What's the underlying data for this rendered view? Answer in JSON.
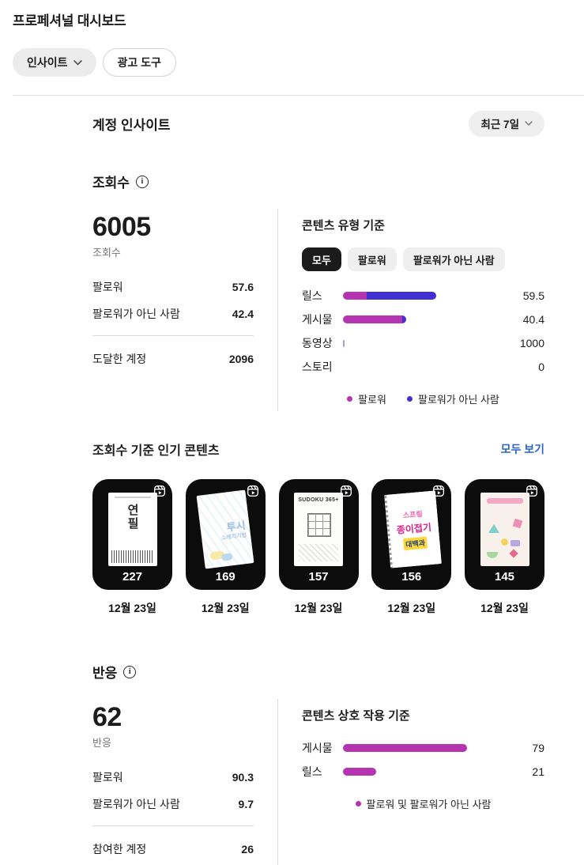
{
  "header": {
    "title": "프로페셔널 대시보드",
    "insights_tab": "인사이트",
    "ad_tools_tab": "광고 도구"
  },
  "account_insights": {
    "section_title": "계정 인사이트",
    "date_filter": "최근 7일",
    "views": {
      "heading": "조회수",
      "total": "6005",
      "total_label": "조회수",
      "follower_label": "팔로워",
      "follower_value": "57.6",
      "non_follower_label": "팔로워가 아닌 사람",
      "non_follower_value": "42.4",
      "reached_label": "도달한 계정",
      "reached_value": "2096"
    },
    "content_type": {
      "heading": "콘텐츠 유형 기준",
      "filters": [
        "모두",
        "팔로워",
        "팔로워가 아닌 사람"
      ],
      "active_filter": "모두",
      "rows": [
        {
          "label": "릴스",
          "value": "59.5",
          "segments": [
            {
              "color_key": "follower",
              "pct": 15.3
            },
            {
              "color_key": "non_follower",
              "pct": 44.2
            }
          ]
        },
        {
          "label": "게시물",
          "value": "40.4",
          "segments": [
            {
              "color_key": "follower",
              "pct": 37.6
            },
            {
              "color_key": "non_follower",
              "pct": 2.8
            }
          ]
        },
        {
          "label": "동영상",
          "value": "1000",
          "segments": [
            {
              "color_key": "tick",
              "pct": 1
            }
          ]
        },
        {
          "label": "스토리",
          "value": "0",
          "segments": []
        }
      ],
      "legend": [
        {
          "label": "팔로워",
          "color_key": "follower"
        },
        {
          "label": "팔로워가 아닌 사람",
          "color_key": "non_follower"
        }
      ]
    }
  },
  "top_content": {
    "heading": "조회수 기준 인기 콘텐츠",
    "see_all": "모두 보기",
    "items": [
      {
        "views": "227",
        "date": "12월 23일"
      },
      {
        "views": "169",
        "date": "12월 23일"
      },
      {
        "views": "157",
        "date": "12월 23일"
      },
      {
        "views": "156",
        "date": "12월 23일"
      },
      {
        "views": "145",
        "date": "12월 23일"
      }
    ],
    "cover_texts": {
      "c1": "연필",
      "c2a": "투시",
      "c2b": "스케치기법",
      "c3": "SUDOKU 365+",
      "c4a": "스프링",
      "c4b": "종이접기",
      "c4c": "대백과"
    }
  },
  "engagement": {
    "heading": "반응",
    "total": "62",
    "total_label": "반응",
    "follower_label": "팔로워",
    "follower_value": "90.3",
    "non_follower_label": "팔로워가 아닌 사람",
    "non_follower_value": "9.7",
    "engaged_label": "참여한 계정",
    "engaged_value": "26",
    "interaction": {
      "heading": "콘텐츠 상호 작용 기준",
      "rows": [
        {
          "label": "게시물",
          "value": "79",
          "segments": [
            {
              "color_key": "follower",
              "pct": 79
            }
          ]
        },
        {
          "label": "릴스",
          "value": "21",
          "segments": [
            {
              "color_key": "follower",
              "pct": 21
            }
          ]
        }
      ],
      "legend": [
        {
          "label": "팔로워 및 팔로워가 아닌 사람",
          "color_key": "follower"
        }
      ]
    }
  },
  "colors": {
    "follower": "#b535b0",
    "non_follower": "#4330d2",
    "tick": "#a5a0d8",
    "link_blue": "#2d64c9",
    "active_pill_bg": "#1b1b1b"
  },
  "chart_data": [
    {
      "type": "bar",
      "title": "콘텐츠 유형 기준",
      "categories": [
        "릴스",
        "게시물",
        "동영상",
        "스토리"
      ],
      "values": [
        59.5,
        40.4,
        1000,
        0
      ],
      "series": [
        {
          "name": "팔로워",
          "values": [
            15.3,
            37.6,
            0,
            0
          ]
        },
        {
          "name": "팔로워가 아닌 사람",
          "values": [
            44.2,
            2.8,
            0,
            0
          ]
        }
      ],
      "legend_position": "bottom",
      "orientation": "horizontal"
    },
    {
      "type": "bar",
      "title": "콘텐츠 상호 작용 기준",
      "categories": [
        "게시물",
        "릴스"
      ],
      "values": [
        79,
        21
      ],
      "series": [
        {
          "name": "팔로워 및 팔로워가 아닌 사람",
          "values": [
            79,
            21
          ]
        }
      ],
      "legend_position": "bottom",
      "orientation": "horizontal"
    }
  ]
}
